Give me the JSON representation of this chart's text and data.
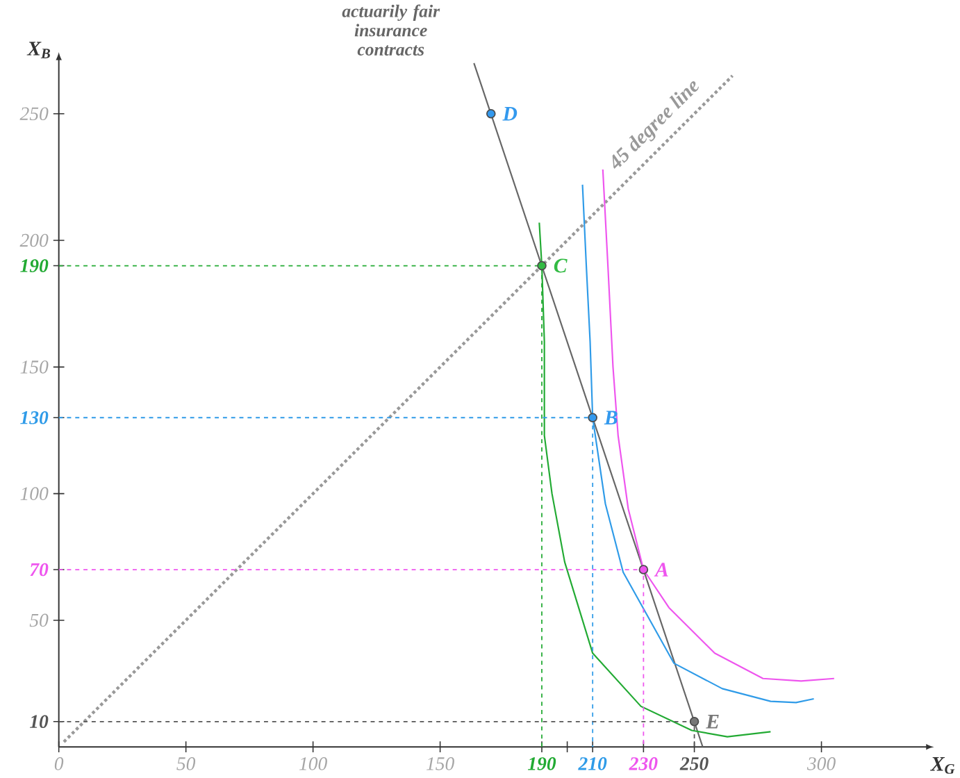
{
  "chart_data": {
    "type": "line",
    "xlabel": "X$_{G}$",
    "ylabel": "X$_{B}$",
    "xlim": [
      0,
      340
    ],
    "ylim": [
      0,
      270
    ],
    "xticks": [
      0,
      50,
      100,
      150,
      190,
      {
        "value": 200,
        "label": null
      },
      210,
      230,
      250,
      300
    ],
    "yticks": [
      10,
      50,
      70,
      100,
      130,
      150,
      190,
      200,
      250
    ],
    "series": [
      {
        "color": "#666666",
        "line_style": "solid",
        "x": [
          163.3,
          253.3
        ],
        "values": [
          270,
          0
        ]
      },
      {
        "color": "#999999",
        "line_style": "dotted",
        "x": [
          2,
          265
        ],
        "values": [
          2,
          265
        ]
      },
      {
        "color": "#22aa33",
        "line_style": "solid",
        "x": [
          189,
          190,
          191,
          191,
          194,
          199,
          210,
          229,
          249,
          263,
          280
        ],
        "values": [
          207,
          190,
          160,
          123,
          100,
          73,
          37,
          16,
          6.5,
          4,
          6
        ]
      },
      {
        "color": "#2f9be8",
        "line_style": "solid",
        "x": [
          206,
          207.5,
          209,
          210,
          215,
          222,
          242,
          261,
          280,
          290,
          297
        ],
        "values": [
          222,
          190,
          160,
          130,
          96,
          69,
          33,
          23,
          18,
          17.5,
          19
        ]
      },
      {
        "color": "#ee55ee",
        "line_style": "solid",
        "x": [
          214,
          216,
          218,
          220,
          224,
          230,
          240,
          258,
          277,
          292,
          305
        ],
        "values": [
          228,
          190,
          150,
          123,
          94,
          70,
          55,
          37,
          27,
          26,
          27
        ]
      },
      {
        "color": "#22aa33",
        "line_style": "dashed",
        "x": [
          0,
          190,
          190
        ],
        "values": [
          190,
          190,
          0
        ]
      },
      {
        "color": "#2f9be8",
        "line_style": "dashed",
        "x": [
          0,
          210,
          210
        ],
        "values": [
          130,
          130,
          0
        ]
      },
      {
        "color": "#ee55ee",
        "line_style": "dashed",
        "x": [
          0,
          230,
          230
        ],
        "values": [
          70,
          70,
          0
        ]
      },
      {
        "color": "#555555",
        "line_style": "dashed",
        "x": [
          0,
          250,
          250
        ],
        "values": [
          10,
          10,
          0
        ]
      },
      {
        "type": "scatter",
        "marker": "circle",
        "x": [
          170,
          190,
          210,
          230,
          250
        ],
        "values": [
          250,
          190,
          130,
          70,
          10
        ],
        "colors": [
          "#3399ee",
          "#33bb44",
          "#3399ee",
          "#ee55ee",
          "#777777"
        ]
      }
    ],
    "annotations": [
      {
        "text": "actuarily fair insurance contracts",
        "x": 163.3,
        "y": 270
      },
      {
        "text": "45 degree line",
        "x": 240,
        "y": 240
      },
      {
        "text": "D",
        "x": 170,
        "y": 250
      },
      {
        "text": "C",
        "x": 190,
        "y": 190
      },
      {
        "text": "B",
        "x": 210,
        "y": 130
      },
      {
        "text": "A",
        "x": 230,
        "y": 70
      },
      {
        "text": "E",
        "x": 250,
        "y": 10
      }
    ]
  }
}
